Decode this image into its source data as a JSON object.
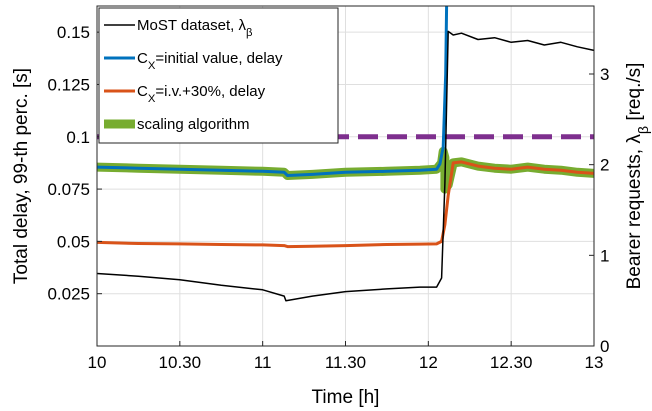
{
  "chart_data": {
    "type": "line",
    "xlabel": "Time [h]",
    "ylabel_left": "Total delay, 99-th perc. [s]",
    "ylabel_right": "Bearer requests, λ_β [req./s]",
    "xlim": [
      10,
      13
    ],
    "ylim_left": [
      0,
      0.1625
    ],
    "ylim_right": [
      0,
      3.75
    ],
    "x_ticks": [
      10,
      10.5,
      11,
      11.5,
      12,
      12.5,
      13
    ],
    "x_tick_labels": [
      "10",
      "10.30",
      "11",
      "11.30",
      "12",
      "12.30",
      "13"
    ],
    "y_left_ticks": [
      0.025,
      0.05,
      0.075,
      0.1,
      0.125,
      0.15
    ],
    "y_left_tick_labels": [
      "0.025",
      "0.05",
      "0.075",
      "0.1",
      "0.125",
      "0.15"
    ],
    "y_right_ticks": [
      0,
      1,
      2,
      3
    ],
    "y_right_tick_labels": [
      "0",
      "1",
      "2",
      "3"
    ],
    "grid": true,
    "legend_position": "top-left",
    "threshold": {
      "axis": "left",
      "value": 0.1,
      "color": "#7e2f8e",
      "style": "dashed"
    },
    "legend": [
      {
        "name": "MoST dataset, λ_β",
        "color": "#000000",
        "width": 1.5
      },
      {
        "name": "C_X=initial value, delay",
        "color": "#0072bd",
        "width": 3
      },
      {
        "name": "C_X=i.v.+30%, delay",
        "color": "#d95319",
        "width": 3
      },
      {
        "name": "scaling algorithm",
        "color": "#77ac30",
        "width": 9
      }
    ],
    "series": [
      {
        "name": "MoST dataset, λ_β",
        "axis": "right",
        "color": "#000000",
        "x": [
          10,
          10.25,
          10.5,
          10.75,
          11.0,
          11.13,
          11.14,
          11.3,
          11.5,
          11.75,
          11.95,
          12.05,
          12.08,
          12.1,
          12.12,
          12.15,
          12.2,
          12.3,
          12.4,
          12.5,
          12.6,
          12.7,
          12.8,
          12.9,
          13.0
        ],
        "y": [
          0.8,
          0.77,
          0.73,
          0.67,
          0.62,
          0.55,
          0.5,
          0.55,
          0.6,
          0.63,
          0.65,
          0.65,
          0.75,
          1.8,
          3.47,
          3.43,
          3.45,
          3.38,
          3.4,
          3.35,
          3.37,
          3.32,
          3.35,
          3.3,
          3.26
        ]
      },
      {
        "name": "C_X=initial value, delay",
        "axis": "left",
        "color": "#0072bd",
        "x": [
          10,
          10.25,
          10.5,
          10.75,
          11.0,
          11.13,
          11.15,
          11.3,
          11.5,
          11.75,
          11.95,
          12.05,
          12.07,
          12.09,
          12.105,
          12.11
        ],
        "y": [
          0.0855,
          0.085,
          0.0845,
          0.084,
          0.0835,
          0.083,
          0.0815,
          0.082,
          0.083,
          0.0835,
          0.084,
          0.0845,
          0.087,
          0.095,
          0.13,
          0.1625
        ]
      },
      {
        "name": "C_X=i.v.+30%, delay",
        "axis": "left",
        "color": "#d95319",
        "x": [
          10,
          10.25,
          10.5,
          10.75,
          11.0,
          11.13,
          11.15,
          11.3,
          11.5,
          11.75,
          11.95,
          12.05,
          12.08,
          12.1,
          12.12,
          12.15,
          12.2,
          12.3,
          12.4,
          12.5,
          12.6,
          12.7,
          12.8,
          12.9,
          13.0
        ],
        "y": [
          0.0495,
          0.049,
          0.0488,
          0.0485,
          0.0483,
          0.048,
          0.0475,
          0.0477,
          0.048,
          0.0485,
          0.0487,
          0.0488,
          0.05,
          0.058,
          0.072,
          0.0875,
          0.088,
          0.086,
          0.085,
          0.0845,
          0.0855,
          0.0845,
          0.084,
          0.083,
          0.0825
        ]
      },
      {
        "name": "scaling algorithm",
        "axis": "left",
        "color": "#77ac30",
        "x": [
          10,
          10.25,
          10.5,
          10.75,
          11.0,
          11.13,
          11.15,
          11.3,
          11.5,
          11.75,
          11.95,
          12.05,
          12.08,
          12.09,
          12.1,
          12.1,
          12.12,
          12.15,
          12.2,
          12.3,
          12.4,
          12.5,
          12.6,
          12.7,
          12.8,
          12.9,
          13.0
        ],
        "y": [
          0.0855,
          0.085,
          0.0845,
          0.084,
          0.0835,
          0.083,
          0.0815,
          0.082,
          0.083,
          0.0835,
          0.084,
          0.0845,
          0.0875,
          0.093,
          0.09,
          0.075,
          0.077,
          0.0875,
          0.088,
          0.086,
          0.085,
          0.0845,
          0.0855,
          0.0845,
          0.084,
          0.083,
          0.0825
        ]
      }
    ]
  }
}
